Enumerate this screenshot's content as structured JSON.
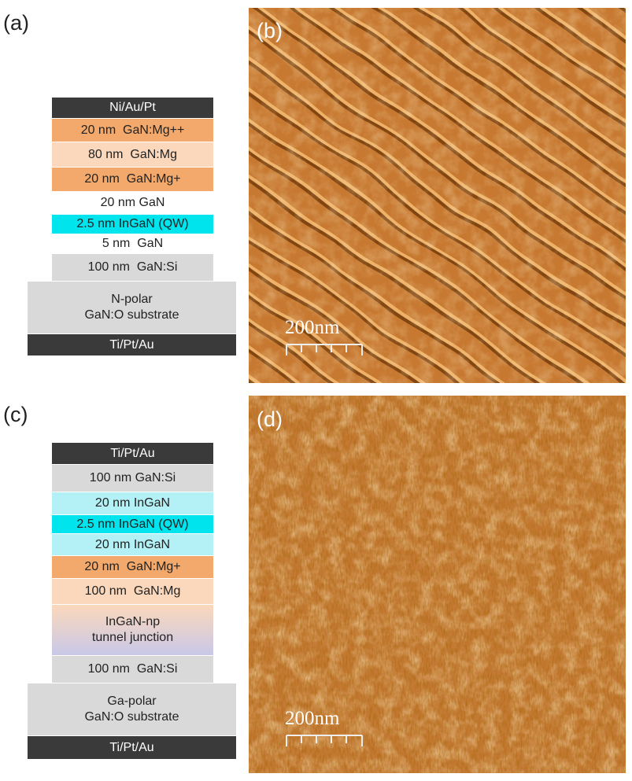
{
  "panels": [
    {
      "label": "(a)",
      "layers": [
        "Ni/Au/Pt",
        "20 nm  GaN:Mg++",
        "80 nm  GaN:Mg",
        "20 nm  GaN:Mg+",
        "20 nm GaN",
        "2.5 nm InGaN (QW)",
        "5 nm  GaN",
        "100 nm  GaN:Si"
      ],
      "substrate": [
        "N-polar",
        "GaN:O substrate"
      ],
      "bottom_contact": "Ti/Pt/Au"
    },
    {
      "label": "(c)",
      "layers": [
        "Ti/Pt/Au",
        "100 nm GaN:Si",
        "20 nm InGaN",
        "2.5 nm InGaN (QW)",
        "20 nm InGaN",
        "20 nm  GaN:Mg+",
        "100 nm  GaN:Mg",
        [
          "InGaN-np",
          "tunnel junction"
        ],
        "100 nm  GaN:Si"
      ],
      "substrate": [
        "Ga-polar",
        "GaN:O substrate"
      ],
      "bottom_contact": "Ti/Pt/Au"
    }
  ],
  "images": [
    {
      "label": "(b)",
      "scale_bar": "200nm"
    },
    {
      "label": "(d)",
      "scale_bar": "200nm"
    }
  ]
}
